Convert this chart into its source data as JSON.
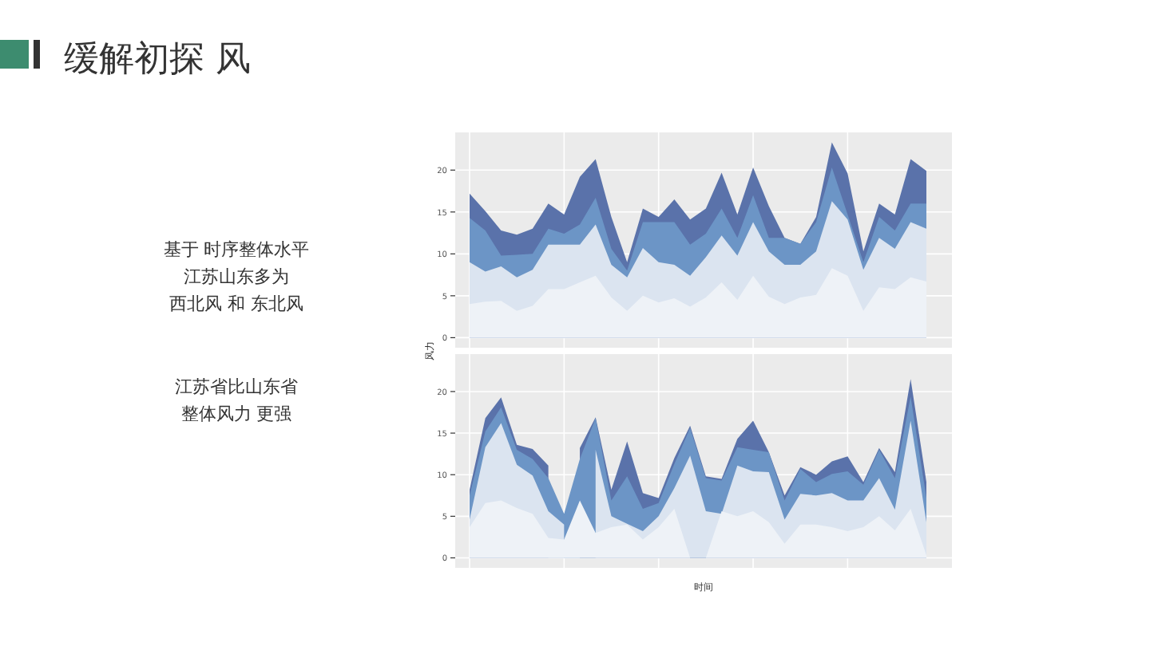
{
  "chart_data": [
    {
      "type": "area",
      "title": "缓解初探 风",
      "ylabel": "风力",
      "annotations": [
        "基于 时序整体水平",
        "江苏山东多为",
        "西北风 和 东北风",
        "江苏省比山东省",
        "整体风力 更强"
      ],
      "categories": [
        null,
        null,
        null,
        null,
        null,
        null,
        null,
        null,
        null,
        null,
        null,
        null,
        null,
        null,
        null,
        null,
        null,
        null,
        null,
        null,
        null,
        null,
        null,
        null,
        null,
        null,
        null,
        null,
        null,
        null
      ],
      "ylim": [
        -1.2,
        24.5
      ],
      "yticks": [
        0,
        5,
        10,
        15,
        20
      ],
      "grid": true,
      "tick_labels": "y",
      "series": [
        {
          "color": "#5a72aa",
          "values": [
            17.2,
            15.1,
            12.8,
            12.3,
            13.0,
            16.0,
            14.7,
            19.2,
            21.3,
            14.4,
            9.0,
            15.4,
            14.4,
            16.5,
            14.1,
            15.4,
            19.7,
            14.7,
            20.3,
            15.7,
            11.9,
            11.2,
            14.4,
            23.3,
            19.6,
            10.3,
            16.0,
            14.7,
            21.3,
            19.9
          ]
        },
        {
          "color": "#6c95c6",
          "values": [
            14.3,
            12.8,
            9.8,
            9.9,
            10.0,
            13.0,
            12.4,
            13.5,
            16.7,
            10.6,
            8.0,
            13.8,
            13.8,
            13.8,
            11.1,
            12.4,
            15.4,
            11.9,
            17.0,
            11.9,
            11.9,
            11.2,
            13.8,
            20.3,
            14.7,
            9.0,
            14.4,
            12.8,
            16.0,
            16.0
          ]
        },
        {
          "color": "#dbe4f0",
          "values": [
            9.0,
            7.9,
            8.5,
            7.2,
            8.1,
            11.1,
            11.1,
            11.1,
            13.5,
            8.7,
            7.2,
            10.7,
            9.0,
            8.7,
            7.4,
            9.6,
            12.2,
            9.8,
            13.8,
            10.3,
            8.7,
            8.7,
            10.3,
            16.3,
            14.1,
            8.1,
            11.9,
            10.6,
            13.8,
            13.0
          ]
        },
        {
          "color": "#eef2f7",
          "values": [
            4.0,
            4.3,
            4.4,
            3.2,
            3.8,
            5.8,
            5.8,
            6.6,
            7.4,
            4.8,
            3.2,
            5.0,
            4.2,
            4.7,
            3.7,
            4.8,
            6.6,
            4.5,
            7.4,
            4.9,
            4.0,
            4.8,
            5.1,
            8.3,
            7.4,
            3.2,
            6.0,
            5.8,
            7.2,
            6.7
          ]
        }
      ]
    },
    {
      "type": "area",
      "xlabel": "时间",
      "categories": [
        null,
        null,
        null,
        null,
        null,
        null,
        null,
        null,
        null,
        null,
        null,
        null,
        null,
        null,
        null,
        null,
        null,
        null,
        null,
        null,
        null,
        null,
        null,
        null,
        null,
        null,
        null,
        null,
        null,
        null
      ],
      "ylim": [
        -1.2,
        24.5
      ],
      "yticks": [
        0,
        5,
        10,
        15,
        20
      ],
      "grid": true,
      "tick_labels": "y",
      "series": [
        {
          "color": "#5a72aa",
          "values": [
            8.2,
            16.8,
            19.3,
            13.6,
            13.1,
            11.1,
            null,
            13.2,
            16.9,
            8.2,
            14.0,
            7.8,
            7.2,
            12.0,
            15.9,
            9.8,
            9.5,
            14.3,
            16.5,
            12.7,
            7.5,
            10.9,
            10.0,
            11.6,
            12.2,
            9.1,
            13.2,
            10.3,
            21.5,
            9.1
          ]
        },
        {
          "color": "#6c95c6",
          "values": [
            7.5,
            15.2,
            18.1,
            13.0,
            11.9,
            9.6,
            5.3,
            11.9,
            16.8,
            6.9,
            9.8,
            5.9,
            6.6,
            11.3,
            15.6,
            9.6,
            9.3,
            13.3,
            13.0,
            12.7,
            6.9,
            10.7,
            9.1,
            10.1,
            10.4,
            8.8,
            13.0,
            9.6,
            19.4,
            7.2
          ]
        },
        {
          "color": "#dbe4f0",
          "values": [
            4.6,
            13.3,
            16.2,
            11.2,
            9.9,
            5.6,
            4.0,
            null,
            13.0,
            5.0,
            4.1,
            3.2,
            5.0,
            8.4,
            12.3,
            5.6,
            5.3,
            11.1,
            10.4,
            10.3,
            4.6,
            7.7,
            7.5,
            7.8,
            6.9,
            6.9,
            9.6,
            5.8,
            16.5,
            4.3
          ]
        },
        {
          "color": "#eef2f7",
          "values": [
            3.7,
            6.6,
            6.9,
            6.0,
            5.3,
            2.4,
            2.2,
            6.9,
            3.0,
            3.7,
            4.0,
            2.2,
            3.7,
            5.9,
            0,
            0,
            5.6,
            5.0,
            5.6,
            4.3,
            1.7,
            4.0,
            4.0,
            3.7,
            3.2,
            3.7,
            5.0,
            3.3,
            5.9,
            0.3
          ]
        }
      ]
    }
  ]
}
